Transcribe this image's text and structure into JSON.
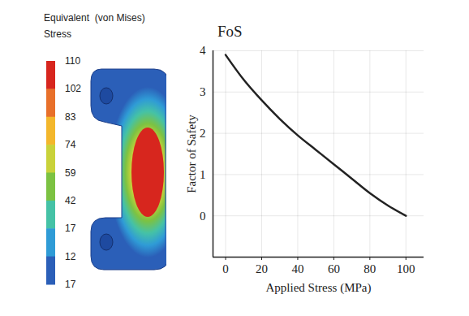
{
  "chart_data": [
    {
      "type": "colorbar",
      "title": "Equivalent  (von Mises)\nStress",
      "labels": [
        110,
        102,
        83,
        74,
        59,
        42,
        17,
        12,
        17
      ],
      "colors": [
        "#d7261e",
        "#e8702a",
        "#f3b72c",
        "#c9d23a",
        "#7cc242",
        "#45c2a6",
        "#2f9bd6",
        "#2b5fb8"
      ]
    },
    {
      "type": "line",
      "title": "FoS",
      "x_label": "Applied Stress (MPa)",
      "y_label": "Factor of Safety",
      "x": [
        0,
        10,
        20,
        30,
        40,
        50,
        60,
        70,
        80,
        90,
        100
      ],
      "values": [
        3.9,
        3.3,
        2.8,
        2.35,
        1.95,
        1.6,
        1.25,
        0.9,
        0.55,
        0.25,
        0
      ],
      "color": "#222222",
      "xlim": [
        -7,
        110
      ],
      "ylim": [
        -1,
        4
      ],
      "xticks": [
        0,
        20,
        40,
        60,
        80,
        100
      ],
      "yticks": [
        0,
        1,
        2,
        3,
        4
      ],
      "grid": true
    }
  ]
}
